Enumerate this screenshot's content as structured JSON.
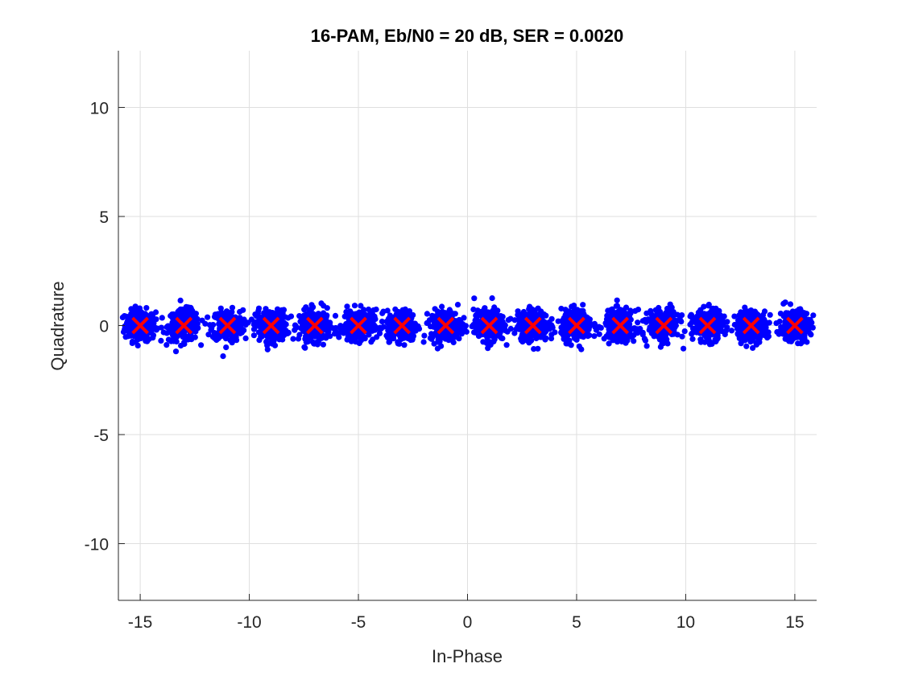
{
  "chart_data": {
    "type": "scatter",
    "title": "16-PAM, Eb/N0 = 20 dB, SER = 0.0020",
    "xlabel": "In-Phase",
    "ylabel": "Quadrature",
    "xlim": [
      -16,
      16
    ],
    "ylim": [
      -12.6,
      12.6
    ],
    "xticks": [
      -15,
      -10,
      -5,
      0,
      5,
      10,
      15
    ],
    "xtick_labels": [
      "-15",
      "-10",
      "-5",
      "0",
      "5",
      "10",
      "15"
    ],
    "yticks": [
      -10,
      -5,
      0,
      5,
      10
    ],
    "ytick_labels": [
      "-10",
      "-5",
      "0",
      "5",
      "10"
    ],
    "grid": true,
    "series": [
      {
        "role": "received-symbols",
        "marker": "dot",
        "color": "#0000ff",
        "cluster_centers": [
          -15,
          -13,
          -11,
          -9,
          -7,
          -5,
          -3,
          -1,
          1,
          3,
          5,
          7,
          9,
          11,
          13,
          15
        ],
        "approx_noise_spread": 0.35
      },
      {
        "role": "reference-constellation",
        "marker": "x",
        "color": "#ff0000",
        "x": [
          -15,
          -13,
          -11,
          -9,
          -7,
          -5,
          -3,
          -1,
          1,
          3,
          5,
          7,
          9,
          11,
          13,
          15
        ],
        "y": [
          0,
          0,
          0,
          0,
          0,
          0,
          0,
          0,
          0,
          0,
          0,
          0,
          0,
          0,
          0,
          0
        ]
      }
    ]
  }
}
